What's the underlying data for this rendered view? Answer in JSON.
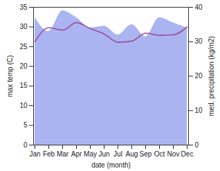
{
  "chart_data": {
    "type": "line",
    "x_label": "date (month)",
    "y_label": "max temp (C)",
    "y2_label": "med. precipitation (kg/m2)",
    "categories": [
      "Jan",
      "Feb",
      "Mar",
      "Apr",
      "May",
      "Jun",
      "Jul",
      "Aug",
      "Sep",
      "Oct",
      "Nov",
      "Dec"
    ],
    "series": [
      {
        "type": "area",
        "axis": "y2",
        "color": "#aab4f0",
        "values": [
          37,
          33,
          39,
          37,
          34,
          34.5,
          32,
          35,
          31.5,
          37,
          35.5,
          34
        ]
      },
      {
        "type": "line",
        "color": "#9c4f97",
        "values": [
          26.3,
          29.8,
          29.2,
          31.1,
          29.6,
          28.2,
          26.1,
          26.4,
          28.4,
          27.9,
          28.0,
          30.0
        ]
      }
    ],
    "ylim": [
      0,
      35
    ],
    "yticks": [
      0,
      5,
      10,
      15,
      20,
      25,
      30,
      35
    ],
    "y2lim": [
      0,
      40
    ],
    "y2ticks": [
      0,
      10,
      20,
      30,
      40
    ],
    "grid": false
  }
}
